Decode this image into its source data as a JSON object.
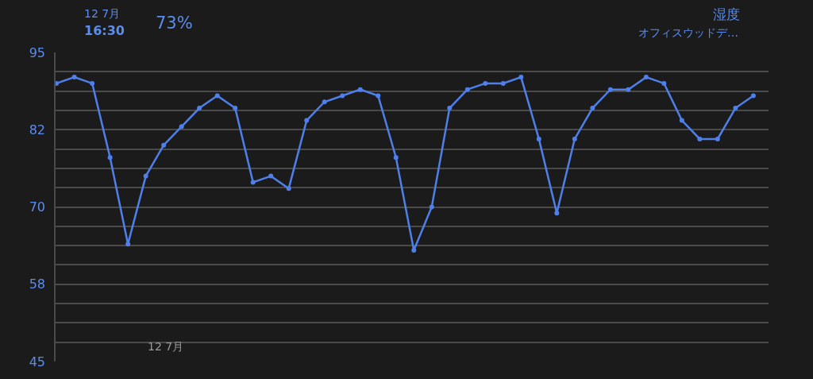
{
  "chart_data": {
    "type": "line",
    "title": "湿度",
    "subtitle": "オフィスウッドデ…",
    "annotations": [
      "12 7月",
      "16:30",
      "73%",
      "12 7月"
    ],
    "categories": [
      null,
      null,
      null,
      null,
      null,
      null,
      null,
      null,
      null,
      null,
      null,
      null,
      null,
      null,
      null,
      null,
      null,
      null,
      null,
      null,
      null,
      null,
      null,
      null,
      null,
      null,
      null,
      null,
      null,
      null,
      null,
      null,
      null,
      null,
      null,
      null,
      null,
      null,
      null,
      null
    ],
    "series": [
      {
        "color": "#4f7fe8",
        "values": [
          90,
          91,
          90,
          78,
          64,
          75,
          80,
          83,
          86,
          88,
          86,
          74,
          75,
          73,
          84,
          87,
          88,
          89,
          88,
          78,
          63,
          70,
          86,
          89,
          90,
          90,
          91,
          81,
          69,
          81,
          86,
          89,
          89,
          91,
          90,
          84,
          81,
          81,
          86,
          88
        ]
      }
    ],
    "ylim": [
      45,
      95
    ],
    "yticks": [
      95,
      {
        "value": 91.875,
        "label": null
      },
      {
        "value": 88.75,
        "label": null
      },
      {
        "value": 85.625,
        "label": null
      },
      {
        "value": 82.5,
        "label": "82"
      },
      {
        "value": 79.375,
        "label": null
      },
      {
        "value": 76.25,
        "label": null
      },
      {
        "value": 73.125,
        "label": null
      },
      70,
      {
        "value": 66.875,
        "label": null
      },
      {
        "value": 63.75,
        "label": null
      },
      {
        "value": 60.625,
        "label": null
      },
      {
        "value": 57.5,
        "label": "58"
      },
      {
        "value": 54.375,
        "label": null
      },
      {
        "value": 51.25,
        "label": null
      },
      {
        "value": 48.125,
        "label": null
      },
      45
    ],
    "grid": "y",
    "marker": "circle",
    "line_style": "solid"
  }
}
